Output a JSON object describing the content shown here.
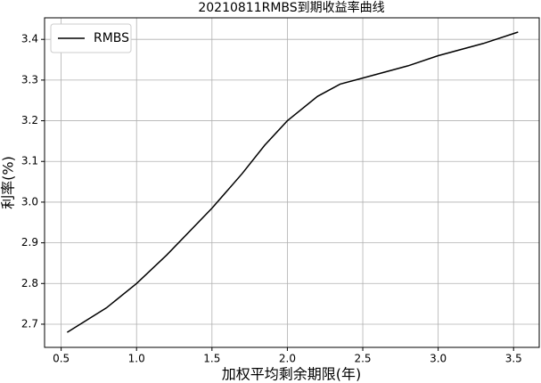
{
  "chart_data": {
    "type": "line",
    "title": "20210811RMBS到期收益率曲线",
    "x_label": "加权平均剩余期限(年)",
    "y_label": "利率(%)",
    "x": [
      0.54,
      0.8,
      1.0,
      1.2,
      1.5,
      1.7,
      1.85,
      2.0,
      2.2,
      2.35,
      2.5,
      2.8,
      3.0,
      3.3,
      3.53
    ],
    "series": [
      {
        "name": "RMBS",
        "color": "#000000",
        "values": [
          2.68,
          2.74,
          2.8,
          2.87,
          2.985,
          3.07,
          3.14,
          3.2,
          3.26,
          3.29,
          3.305,
          3.335,
          3.36,
          3.39,
          3.418
        ]
      }
    ],
    "xlim": [
      0.39,
      3.67
    ],
    "ylim": [
      2.643,
      3.453
    ],
    "xticks": [
      0.5,
      {
        "value": 1.0,
        "label": "1.0"
      },
      1.5,
      {
        "value": 2.0,
        "label": "2.0"
      },
      2.5,
      {
        "value": 3.0,
        "label": "3.0"
      },
      3.5
    ],
    "yticks": [
      2.7,
      2.8,
      2.9,
      {
        "value": 3.0,
        "label": "3.0"
      },
      3.1,
      3.2,
      3.3,
      3.4
    ],
    "grid": true,
    "legend": "upper-left"
  }
}
